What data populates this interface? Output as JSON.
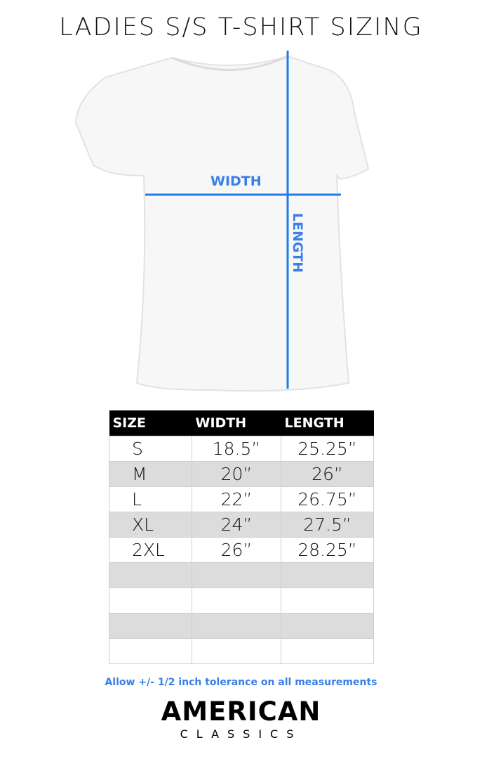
{
  "title": "LADIES S/S T-SHIRT SIZING",
  "diagram": {
    "width_label": "WIDTH",
    "length_label": "LENGTH",
    "line_color": "#1f7be8"
  },
  "table": {
    "headers": [
      "SIZE",
      "WIDTH",
      "LENGTH"
    ],
    "rows": [
      [
        "S",
        "18.5”",
        "25.25”"
      ],
      [
        "M",
        "20”",
        "26”"
      ],
      [
        "L",
        "22”",
        "26.75”"
      ],
      [
        "XL",
        "24”",
        "27.5”"
      ],
      [
        "2XL",
        "26”",
        "28.25”"
      ],
      [
        "",
        "",
        ""
      ],
      [
        "",
        "",
        ""
      ],
      [
        "",
        "",
        ""
      ],
      [
        "",
        "",
        ""
      ]
    ]
  },
  "note": "Allow +/- 1/2 inch tolerance on all measurements",
  "logo": {
    "line1": "AMERICAN",
    "line2": "CLASSICS"
  }
}
